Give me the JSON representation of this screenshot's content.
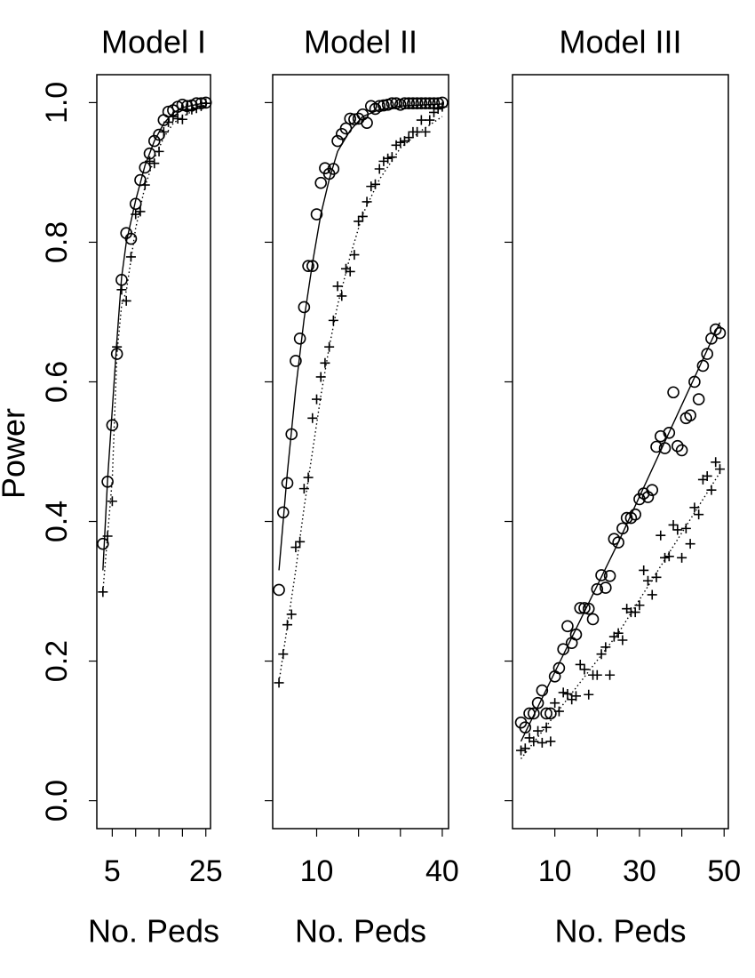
{
  "chart_data": [
    {
      "type": "scatter",
      "title": "Model I",
      "xlabel": "No. Peds",
      "ylabel": "Power",
      "x": [
        3,
        4,
        5,
        6,
        7,
        8,
        9,
        10,
        11,
        12,
        13,
        14,
        15,
        16,
        17,
        18,
        19,
        20,
        21,
        22,
        23,
        24,
        25
      ],
      "xlim": [
        1.7,
        26
      ],
      "xticks": [
        5,
        {
          "value": 10,
          "label": null
        },
        {
          "value": 15,
          "label": null
        },
        {
          "value": 20,
          "label": null
        },
        25
      ],
      "ylim": [
        -0.04,
        1.04
      ],
      "yticks": [
        {
          "value": 0,
          "label": "0.0"
        },
        {
          "value": 0.2,
          "label": "0.2"
        },
        {
          "value": 0.4,
          "label": "0.4"
        },
        {
          "value": 0.6,
          "label": "0.6"
        },
        {
          "value": 0.8,
          "label": "0.8"
        },
        {
          "value": 1,
          "label": "1.0"
        }
      ],
      "series": [
        {
          "marker": "circle",
          "color": "#000000",
          "values": [
            0.368,
            0.457,
            0.538,
            0.64,
            0.746,
            0.813,
            0.805,
            0.855,
            0.889,
            0.907,
            0.927,
            0.945,
            0.954,
            0.975,
            0.987,
            0.989,
            0.994,
            0.997,
            0.995,
            0.996,
            0.999,
            0.999,
            1.0
          ],
          "fit": {
            "style": "solid",
            "x": [
              3,
              4,
              5,
              6,
              7,
              8,
              10,
              12,
              14,
              16,
              18,
              20,
              25
            ],
            "values": [
              0.33,
              0.46,
              0.56,
              0.66,
              0.75,
              0.8,
              0.86,
              0.91,
              0.945,
              0.97,
              0.985,
              0.993,
              1.0
            ]
          }
        },
        {
          "marker": "plus",
          "color": "#000000",
          "values": [
            0.299,
            0.379,
            0.429,
            0.65,
            0.732,
            0.716,
            0.779,
            0.84,
            0.844,
            0.882,
            0.916,
            0.913,
            0.93,
            0.958,
            0.972,
            0.98,
            0.977,
            0.976,
            0.989,
            0.99,
            0.992,
            0.995,
            0.999
          ],
          "fit": {
            "style": "dotted",
            "x": [
              3,
              4,
              5,
              6,
              7,
              8,
              10,
              12,
              14,
              16,
              18,
              20,
              25
            ],
            "values": [
              0.3,
              0.38,
              0.46,
              0.64,
              0.71,
              0.73,
              0.82,
              0.88,
              0.92,
              0.95,
              0.97,
              0.98,
              0.998
            ]
          }
        }
      ]
    },
    {
      "type": "scatter",
      "title": "Model II",
      "xlabel": "No. Peds",
      "x": [
        1,
        2,
        3,
        4,
        5,
        6,
        7,
        8,
        9,
        10,
        11,
        12,
        13,
        14,
        15,
        16,
        17,
        18,
        19,
        20,
        21,
        22,
        23,
        24,
        25,
        26,
        27,
        28,
        29,
        30,
        31,
        32,
        33,
        34,
        35,
        36,
        37,
        38,
        39,
        40
      ],
      "xlim": [
        -0.5,
        41.5
      ],
      "xticks": [
        10,
        {
          "value": 20,
          "label": null
        },
        {
          "value": 30,
          "label": null
        },
        40
      ],
      "ylim": [
        -0.04,
        1.04
      ],
      "yticks": [
        {
          "value": 0,
          "label": null
        },
        {
          "value": 0.2,
          "label": null
        },
        {
          "value": 0.4,
          "label": null
        },
        {
          "value": 0.6,
          "label": null
        },
        {
          "value": 0.8,
          "label": null
        },
        {
          "value": 1,
          "label": null
        }
      ],
      "series": [
        {
          "marker": "circle",
          "color": "#000000",
          "values": [
            0.302,
            0.413,
            0.455,
            0.525,
            0.63,
            0.662,
            0.707,
            0.766,
            0.766,
            0.84,
            0.885,
            0.906,
            0.898,
            0.905,
            0.945,
            0.955,
            0.963,
            0.977,
            0.976,
            0.977,
            0.983,
            0.971,
            0.995,
            0.991,
            0.995,
            0.996,
            0.997,
            0.999,
            0.999,
            0.997,
            0.999,
            0.999,
            0.999,
            0.999,
            0.999,
            0.999,
            0.999,
            0.999,
            0.999,
            1.0
          ],
          "fit": {
            "style": "solid",
            "x": [
              1,
              3,
              5,
              7,
              9,
              11,
              13,
              15,
              18,
              21,
              25,
              30,
              40
            ],
            "values": [
              0.33,
              0.47,
              0.59,
              0.69,
              0.77,
              0.84,
              0.89,
              0.93,
              0.96,
              0.98,
              0.99,
              0.995,
              0.998
            ]
          }
        },
        {
          "marker": "plus",
          "color": "#000000",
          "values": [
            0.169,
            0.21,
            0.252,
            0.267,
            0.363,
            0.371,
            0.447,
            0.463,
            0.548,
            0.575,
            0.607,
            0.627,
            0.65,
            0.688,
            0.737,
            0.723,
            0.762,
            0.758,
            0.782,
            0.83,
            0.837,
            0.858,
            0.88,
            0.883,
            0.905,
            0.916,
            0.92,
            0.922,
            0.939,
            0.943,
            0.945,
            0.95,
            0.958,
            0.958,
            0.975,
            0.958,
            0.975,
            0.986,
            0.991,
            0.994
          ],
          "fit": {
            "style": "dotted",
            "x": [
              1,
              3,
              5,
              7,
              9,
              11,
              13,
              15,
              18,
              21,
              25,
              30,
              35,
              40
            ],
            "values": [
              0.17,
              0.25,
              0.33,
              0.42,
              0.5,
              0.58,
              0.65,
              0.71,
              0.78,
              0.84,
              0.89,
              0.935,
              0.96,
              0.98
            ]
          }
        }
      ]
    },
    {
      "type": "scatter",
      "title": "Model III",
      "xlabel": "No. Peds",
      "x": [
        2,
        3,
        4,
        5,
        6,
        7,
        8,
        9,
        10,
        11,
        12,
        13,
        14,
        15,
        16,
        17,
        18,
        19,
        20,
        21,
        22,
        23,
        24,
        25,
        26,
        27,
        28,
        29,
        30,
        31,
        32,
        33,
        34,
        35,
        36,
        37,
        38,
        39,
        40,
        41,
        42,
        43,
        44,
        45,
        46,
        47,
        48,
        49
      ],
      "xlim": [
        0,
        51
      ],
      "xticks": [
        10,
        {
          "value": 20,
          "label": null
        },
        30,
        {
          "value": 40,
          "label": null
        },
        50
      ],
      "ylim": [
        -0.04,
        1.04
      ],
      "yticks": [
        {
          "value": 0,
          "label": null
        },
        {
          "value": 0.2,
          "label": null
        },
        {
          "value": 0.4,
          "label": null
        },
        {
          "value": 0.6,
          "label": null
        },
        {
          "value": 0.8,
          "label": null
        },
        {
          "value": 1,
          "label": null
        }
      ],
      "series": [
        {
          "marker": "circle",
          "color": "#000000",
          "values": [
            0.112,
            0.105,
            0.125,
            0.125,
            0.14,
            0.158,
            0.125,
            0.125,
            0.178,
            0.19,
            0.217,
            0.25,
            0.226,
            0.238,
            0.276,
            0.276,
            0.275,
            0.26,
            0.303,
            0.323,
            0.305,
            0.322,
            0.375,
            0.37,
            0.39,
            0.405,
            0.405,
            0.41,
            0.432,
            0.44,
            0.435,
            0.445,
            0.507,
            0.522,
            0.505,
            0.527,
            0.585,
            0.508,
            0.502,
            0.548,
            0.552,
            0.6,
            0.575,
            0.623,
            0.64,
            0.662,
            0.675,
            0.67
          ],
          "fit": {
            "style": "solid",
            "x": [
              2,
              25,
              49
            ],
            "values": [
              0.085,
              0.37,
              0.685
            ]
          }
        },
        {
          "marker": "plus",
          "color": "#000000",
          "values": [
            0.072,
            0.075,
            0.09,
            0.085,
            0.1,
            0.083,
            0.105,
            0.085,
            0.14,
            0.128,
            0.155,
            0.153,
            0.145,
            0.15,
            0.195,
            0.188,
            0.152,
            0.18,
            0.18,
            0.21,
            0.22,
            0.18,
            0.235,
            0.24,
            0.23,
            0.275,
            0.27,
            0.27,
            0.28,
            0.33,
            0.315,
            0.295,
            0.32,
            0.38,
            0.348,
            0.35,
            0.395,
            0.388,
            0.348,
            0.39,
            0.368,
            0.42,
            0.41,
            0.46,
            0.465,
            0.445,
            0.485,
            0.475
          ],
          "fit": {
            "style": "dotted",
            "x": [
              2,
              25,
              49
            ],
            "values": [
              0.06,
              0.24,
              0.47
            ]
          }
        }
      ]
    }
  ]
}
